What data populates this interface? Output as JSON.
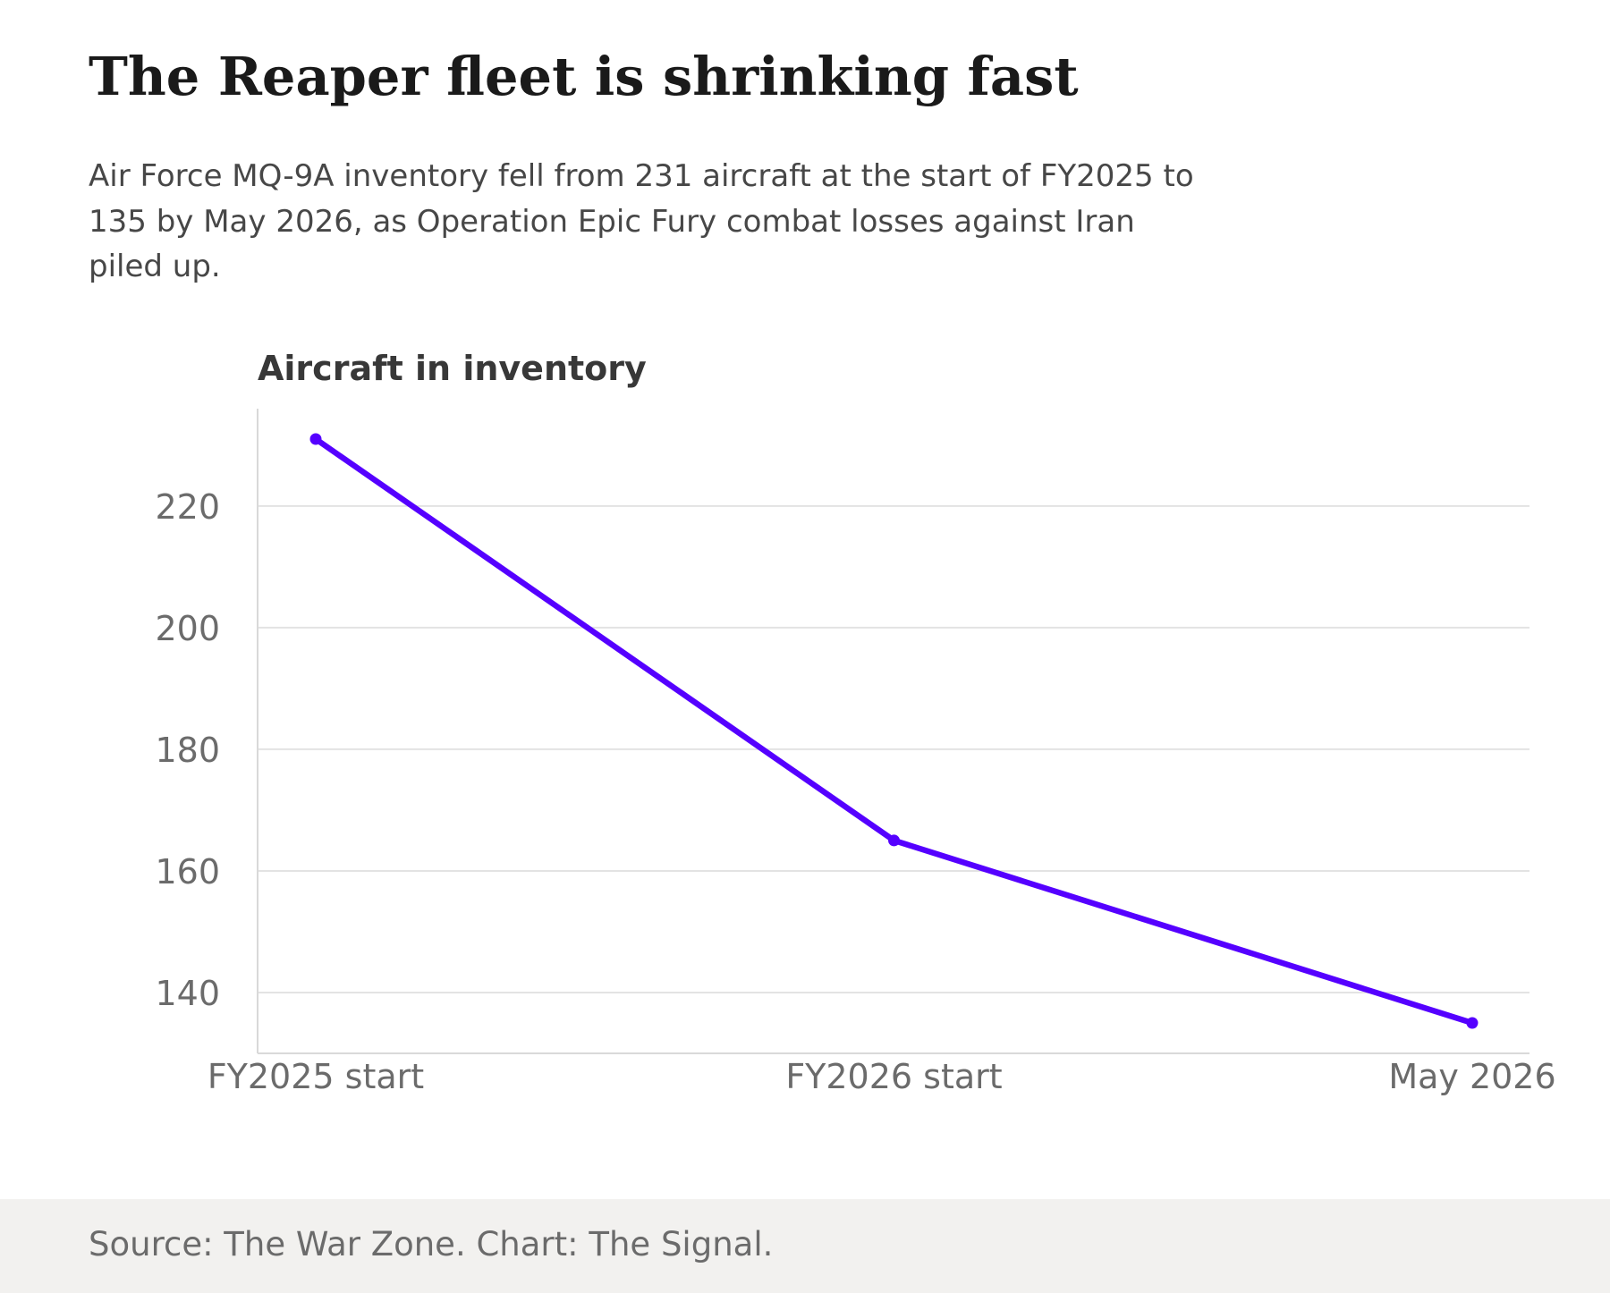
{
  "headline": "The Reaper fleet is shrinking fast",
  "subtitle": "Air Force MQ-9A inventory fell from 231 aircraft at the start of FY2025 to 135 by May 2026, as Operation Epic Fury combat losses against Iran piled up.",
  "footer": {
    "source": "Source: The War Zone. Chart: The Signal."
  },
  "chart_data": {
    "type": "line",
    "title": "The Reaper fleet is shrinking fast",
    "ylabel": "Aircraft in inventory",
    "xlabel": "",
    "categories": [
      "FY2025 start",
      "FY2026 start",
      "May 2026"
    ],
    "series": [
      {
        "values": [
          231,
          165,
          135
        ],
        "color": "#5500ff"
      }
    ],
    "ylim": [
      130,
      236
    ],
    "yticks": [
      140,
      160,
      180,
      200,
      220
    ],
    "grid": true,
    "legend": "none"
  }
}
